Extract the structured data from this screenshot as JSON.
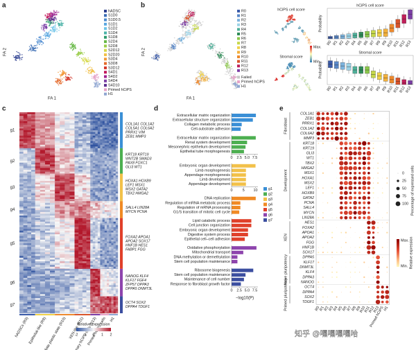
{
  "panel_labels": [
    "a",
    "b",
    "c",
    "d",
    "e"
  ],
  "a": {
    "xlabel": "FA 1",
    "ylabel": "FA 2",
    "legend": [
      {
        "name": "hADSC",
        "color": "#2c3e8f"
      },
      {
        "name": "S1D0",
        "color": "#3a6cb4"
      },
      {
        "name": "S1D0.5",
        "color": "#4c8bd0"
      },
      {
        "name": "S1D1",
        "color": "#5aa7e0"
      },
      {
        "name": "S1D2",
        "color": "#6fc3e8"
      },
      {
        "name": "S1D4",
        "color": "#4bb3a8"
      },
      {
        "name": "S1D8",
        "color": "#2f9c6e"
      },
      {
        "name": "S2D4",
        "color": "#67b847"
      },
      {
        "name": "S2D8",
        "color": "#9acd4a"
      },
      {
        "name": "S2D12",
        "color": "#d7d84a"
      },
      {
        "name": "S2D20",
        "color": "#f2c14a"
      },
      {
        "name": "S3D4",
        "color": "#f29a3a"
      },
      {
        "name": "S3D8",
        "color": "#e46a2a"
      },
      {
        "name": "S3D12",
        "color": "#d4372a"
      },
      {
        "name": "S4D1",
        "color": "#c2185b"
      },
      {
        "name": "S4D2",
        "color": "#a0228f"
      },
      {
        "name": "S4D4",
        "color": "#7b3fa6"
      },
      {
        "name": "S4D10",
        "color": "#5c2f8f"
      },
      {
        "name": "Primed hCiPS",
        "color": "#e5a3c8"
      },
      {
        "name": "H1",
        "color": "#8fa6d1"
      }
    ]
  },
  "b": {
    "xlabel": "FA 1",
    "ylabel": "FA 2",
    "legend": [
      {
        "name": "R0",
        "color": "#3b5ba9"
      },
      {
        "name": "R1",
        "color": "#5a88c8"
      },
      {
        "name": "R2",
        "color": "#7db4de"
      },
      {
        "name": "R3",
        "color": "#9dd3e6"
      },
      {
        "name": "R4",
        "color": "#4fb09a"
      },
      {
        "name": "R5",
        "color": "#2e8b57"
      },
      {
        "name": "R6",
        "color": "#8cc84b"
      },
      {
        "name": "R7",
        "color": "#c6d84a"
      },
      {
        "name": "R8",
        "color": "#f0d24a"
      },
      {
        "name": "R9",
        "color": "#f3b13c"
      },
      {
        "name": "R10",
        "color": "#ee8a2e"
      },
      {
        "name": "R11",
        "color": "#d9542a"
      },
      {
        "name": "R12",
        "color": "#c01f5a"
      },
      {
        "name": "R13",
        "color": "#7c3ea6"
      },
      {
        "name": "Failed",
        "color": "#c8c8c8"
      },
      {
        "name": "Primed hCiPS",
        "color": "#e5a3c8"
      },
      {
        "name": "H1",
        "color": "#8fa6d1"
      }
    ],
    "score_maps": [
      "hCiPS cell score",
      "Stromal score"
    ],
    "scale_max": "Max.",
    "scale_min": "Min.",
    "boxplots": [
      {
        "title": "hCiPS cell score",
        "ylabel": "Probability"
      },
      {
        "title": "Stromal score",
        "ylabel": "Probability"
      }
    ],
    "categories": [
      "R0",
      "R1",
      "R2",
      "R3",
      "R4",
      "R5",
      "R6",
      "R7",
      "R8",
      "R9",
      "R10",
      "R11",
      "R12",
      "R13"
    ]
  },
  "c": {
    "groups": [
      {
        "name": "g1",
        "color": "#3a8fd6",
        "genes": [
          "COL1A1 COL1A2",
          "COL5A1 COL6A2",
          "PRRX1 VIM",
          "ZEB1 MMP3"
        ]
      },
      {
        "name": "g2",
        "color": "#4caf50",
        "genes": [
          "KRT18 KRT19",
          "WNT2B SMAD3",
          "PAX8 FOXC1",
          "GLI3 WT1"
        ]
      },
      {
        "name": "g3",
        "color": "#f2c14a",
        "genes": [
          "HOXA1 HOXB9",
          "LEF1 MSX1",
          "MSX2 GATA2",
          "TBX2 HMGA2"
        ]
      },
      {
        "name": "g4",
        "color": "#f08a24",
        "genes": [
          "SALL4 LIN28A",
          "MYCN PCNA"
        ]
      },
      {
        "name": "g5",
        "color": "#e0402a",
        "genes": [
          "FOXA2 APOA1",
          "APOA2 SOX17",
          "HNF1B HES1",
          "FABP1 FGG"
        ]
      },
      {
        "name": "g6",
        "color": "#8e44ad",
        "genes": [
          "NANOG KLF4",
          "KLF17 FGF4",
          "ZFP57 DPPA3",
          "DPPA5 DNMT3L"
        ]
      },
      {
        "name": "g7",
        "color": "#3b4ea0",
        "genes": [
          "OCT4 SOX2",
          "DPPA4 TDGF1"
        ]
      }
    ],
    "columns": [
      "hADSCs (R0)",
      "Epithelial-like (R8)",
      "Intermediate plastic state (R10)",
      "XEN-like (R11)",
      "Primary hCiPS cells (R13)",
      "Primed hCiPS cells",
      "H1"
    ],
    "colorbar_title": "Relative expression",
    "colorbar_ticks": [
      -2,
      -1,
      0,
      1,
      2
    ]
  },
  "d": {
    "xlabel": "−log10(P)",
    "groups": [
      {
        "name": "g1",
        "color": "#3a8fd6",
        "xlim": [
          0,
          13
        ],
        "terms": [
          "Extracellular matrix organization",
          "Extracellular structure organization",
          "Collagen metabolic process",
          "Cell-substrate adhesion"
        ],
        "values": [
          12,
          10.5,
          5,
          4.5
        ]
      },
      {
        "name": "g2",
        "color": "#4caf50",
        "xlim": [
          0,
          8.5
        ],
        "ticks": [
          0,
          2.5,
          {
            "value": 5,
            "label": "5.0"
          },
          7.5
        ],
        "terms": [
          "Extracellular matrix organization",
          "Renal system development",
          "Mesonephric epithelium development",
          "Epithelial tube morphogenesis"
        ],
        "values": [
          7.8,
          5,
          4.5,
          4
        ]
      },
      {
        "name": "g3",
        "color": "#f2c14a",
        "xlim": [
          0,
          11
        ],
        "ticks": [
          0,
          5,
          10
        ],
        "terms": [
          "Embryonic organ development",
          "Limb morphogenesis",
          "Appendage morphogenesis",
          "Limb development",
          "Appendage development"
        ],
        "values": [
          10,
          6,
          6,
          6,
          6
        ]
      },
      {
        "name": "g4",
        "color": "#f08a24",
        "xlim": [
          0,
          12
        ],
        "terms": [
          "DNA replication",
          "Regulation of mRNA metabolic process",
          "Regulation of mRNA processing",
          "G1/S transition of mitotic cell cycle"
        ],
        "values": [
          11,
          4,
          4,
          3.5
        ]
      },
      {
        "name": "g5",
        "color": "#e0402a",
        "xlim": [
          0,
          4
        ],
        "terms": [
          "Lipid catabolic process",
          "Cell junction organization",
          "Embryonic organ development",
          "Digestive system process",
          "Epithelial cell–cell adhesion"
        ],
        "values": [
          3,
          3,
          2.5,
          2.5,
          2
        ]
      },
      {
        "name": "g6",
        "color": "#8e44ad",
        "xlim": [
          0,
          9
        ],
        "terms": [
          "Oxidative phosphorylation",
          "Mitochondrial transport",
          "DNA methylation or demethylation",
          "Stem cell population maintenance"
        ],
        "values": [
          8.5,
          4,
          2,
          2
        ]
      },
      {
        "name": "g7",
        "color": "#3b4ea0",
        "xlim": [
          0,
          8.5
        ],
        "ticks": [
          0,
          2.5,
          {
            "value": 5,
            "label": "5.0"
          },
          7.5
        ],
        "terms": [
          "Ribosome biogenesis",
          "Stem cell population maintenance",
          "Maintenance of cell number",
          "Response to fibroblast growth factor"
        ],
        "values": [
          7,
          4.5,
          4,
          3
        ]
      }
    ]
  },
  "e": {
    "groups": [
      {
        "name": "Fibroblast",
        "genes": [
          "COL1A1",
          "ZEB1",
          "PRRX1",
          "COL1A2",
          "COL6A2",
          "MMP3"
        ]
      },
      {
        "name": "Development",
        "genes": [
          "KRT18",
          "KRT19",
          "GLI3",
          "WT1",
          "TBX2",
          "HMGA2",
          "MSX1",
          "HOXA1",
          "MSX2",
          "LEF1",
          "HOXB9",
          "GATA2",
          "PCNA",
          "SALL4",
          "MYCN",
          "LIN28A"
        ]
      },
      {
        "name": "XEN",
        "genes": [
          "HES1",
          "FOXA2",
          "APOA1",
          "APOA2",
          "FGG",
          "HNF1B",
          "SOX17"
        ]
      },
      {
        "name": "Naive pluripotency",
        "genes": [
          "DPPA5",
          "KLF17",
          "DNMT3L",
          "KLF4",
          "DPPA3",
          "NANOG"
        ]
      },
      {
        "name": "Primed pluripotency",
        "genes": [
          "OCT4",
          "DPPA4",
          "SOX2",
          "TDGF1"
        ]
      }
    ],
    "columns": [
      "R0",
      "R1",
      "R2",
      "R3",
      "R4",
      "R5",
      "R6",
      "R7",
      "R8",
      "R9",
      "R10",
      "R11",
      "R12",
      "R13",
      "Primed hCiPS",
      "H1"
    ],
    "size_title": "Percentage of expressed cells",
    "size_ticks": [
      0,
      25,
      50,
      75,
      100
    ],
    "color_title": "Relative expression",
    "scale_max": "Max.",
    "scale_min": "Min."
  },
  "watermark": "知乎 @嘿嘿嘿嘿哈"
}
